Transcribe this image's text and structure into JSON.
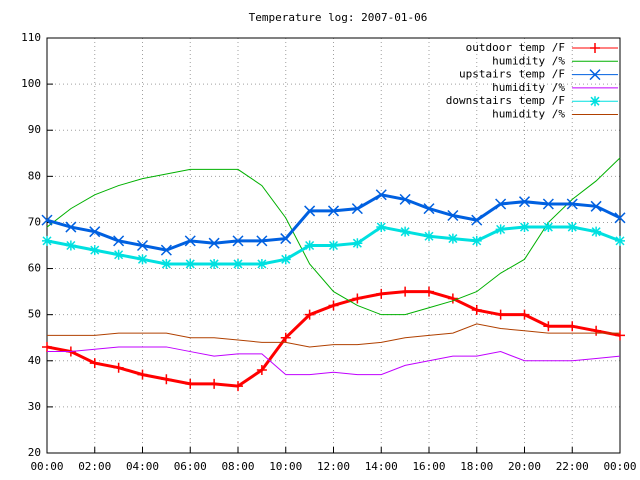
{
  "chart_data": {
    "type": "line",
    "title": "Temperature log: 2007-01-06",
    "x": [
      0,
      1,
      2,
      3,
      4,
      5,
      6,
      7,
      8,
      9,
      10,
      11,
      12,
      13,
      14,
      15,
      16,
      17,
      18,
      19,
      20,
      21,
      22,
      23,
      24
    ],
    "xlim": [
      0,
      24
    ],
    "xticks": [
      {
        "value": 0,
        "label": "00:00"
      },
      {
        "value": 2,
        "label": "02:00"
      },
      {
        "value": 4,
        "label": "04:00"
      },
      {
        "value": 6,
        "label": "06:00"
      },
      {
        "value": 8,
        "label": "08:00"
      },
      {
        "value": 10,
        "label": "10:00"
      },
      {
        "value": 12,
        "label": "12:00"
      },
      {
        "value": 14,
        "label": "14:00"
      },
      {
        "value": 16,
        "label": "16:00"
      },
      {
        "value": 18,
        "label": "18:00"
      },
      {
        "value": 20,
        "label": "20:00"
      },
      {
        "value": 22,
        "label": "22:00"
      },
      {
        "value": 24,
        "label": "00:00"
      }
    ],
    "ylim": [
      20,
      110
    ],
    "yticks": [
      20,
      30,
      40,
      50,
      60,
      70,
      80,
      90,
      100,
      110
    ],
    "grid": true,
    "legend": "top-right",
    "series": [
      {
        "name": "outdoor temp /F",
        "color": "#ff0000",
        "marker": "plus",
        "values": [
          43,
          42,
          39.5,
          38.5,
          37,
          36,
          35,
          35,
          34.5,
          38,
          45,
          50,
          52,
          53.5,
          54.5,
          55,
          55,
          53.5,
          51,
          50,
          50,
          47.5,
          47.5,
          46.5,
          45.5
        ]
      },
      {
        "name": "humidity /%",
        "color": "#00b000",
        "marker": "none",
        "values": [
          69,
          73,
          76,
          78,
          79.5,
          80.5,
          81.5,
          81.5,
          81.5,
          78,
          71,
          61,
          55,
          52,
          50,
          50,
          51.5,
          53,
          55,
          59,
          62,
          70,
          75,
          79,
          84
        ]
      },
      {
        "name": "upstairs temp /F",
        "color": "#0060e0",
        "marker": "cross",
        "values": [
          70.5,
          69,
          68,
          66,
          65,
          64,
          66,
          65.5,
          66,
          66,
          66.5,
          72.5,
          72.5,
          73,
          76,
          75,
          73,
          71.5,
          70.5,
          74,
          74.5,
          74,
          74,
          73.5,
          71
        ]
      },
      {
        "name": "humidity /%",
        "color": "#c000ff",
        "marker": "none",
        "values": [
          42,
          42,
          42.5,
          43,
          43,
          43,
          42,
          41,
          41.5,
          41.5,
          37,
          37,
          37.5,
          37,
          37,
          39,
          40,
          41,
          41,
          42,
          40,
          40,
          40,
          40.5,
          41
        ]
      },
      {
        "name": "downstairs temp /F",
        "color": "#00e0e0",
        "marker": "star",
        "values": [
          66,
          65,
          64,
          63,
          62,
          61,
          61,
          61,
          61,
          61,
          62,
          65,
          65,
          65.5,
          69,
          68,
          67,
          66.5,
          66,
          68.5,
          69,
          69,
          69,
          68,
          66
        ]
      },
      {
        "name": "humidity /%",
        "color": "#b04000",
        "marker": "none",
        "values": [
          45.5,
          45.5,
          45.5,
          46,
          46,
          46,
          45,
          45,
          44.5,
          44,
          44,
          43,
          43.5,
          43.5,
          44,
          45,
          45.5,
          46,
          48,
          47,
          46.5,
          46,
          46,
          46,
          46
        ]
      }
    ]
  }
}
